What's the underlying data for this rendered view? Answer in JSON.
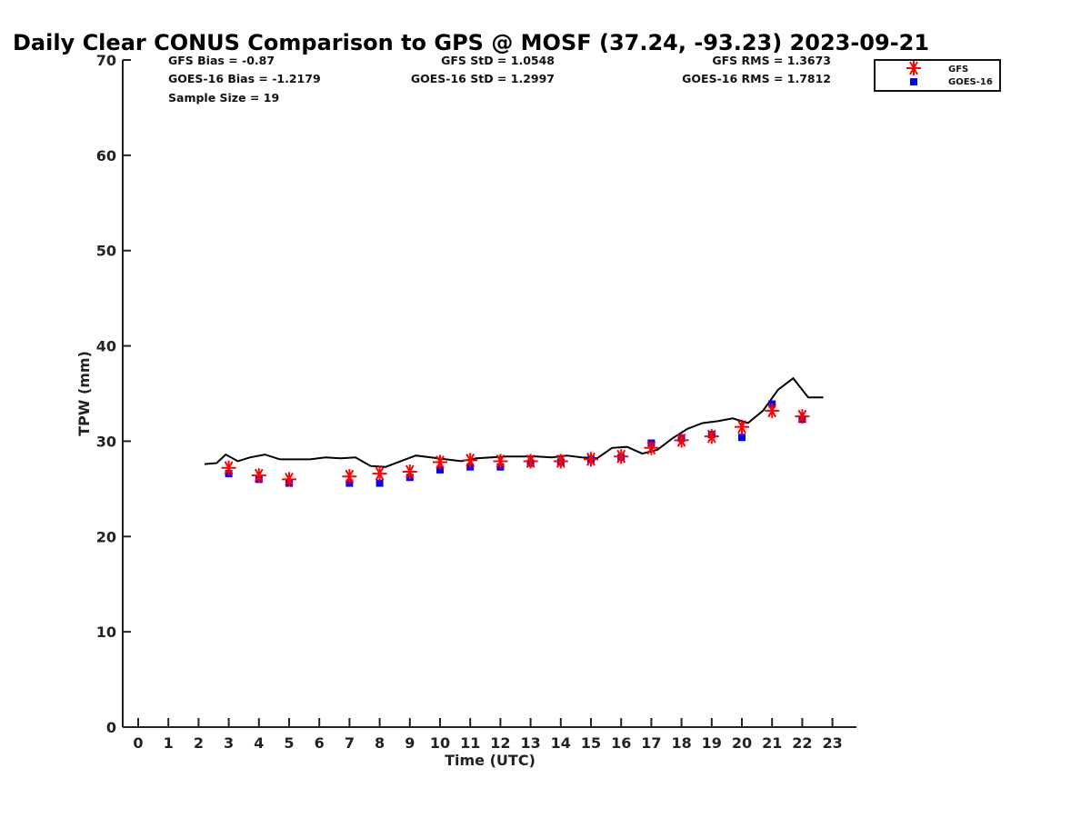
{
  "chart_data": {
    "type": "scatter",
    "title": "Daily Clear CONUS Comparison to GPS @ MOSF (37.24, -93.23) 2023-09-21",
    "xlabel": "Time (UTC)",
    "ylabel": "TPW (mm)",
    "xlim": [
      -0.5,
      23.7
    ],
    "ylim": [
      0,
      70
    ],
    "xticks": [
      "0",
      "1",
      "2",
      "3",
      "4",
      "5",
      "6",
      "7",
      "8",
      "9",
      "10",
      "11",
      "12",
      "13",
      "14",
      "15",
      "16",
      "17",
      "18",
      "19",
      "20",
      "21",
      "22",
      "23"
    ],
    "yticks": [
      "0",
      "10",
      "20",
      "30",
      "40",
      "50",
      "60",
      "70"
    ],
    "grid": false,
    "legend_position": "top-right",
    "stats": {
      "gfs_bias": "GFS Bias = -0.87",
      "goes_bias": "GOES-16 Bias = -1.2179",
      "sample_size": "Sample Size = 19",
      "gfs_std": "GFS StD = 1.0548",
      "goes_std": "GOES-16 StD = 1.2997",
      "gfs_rms": "GFS RMS = 1.3673",
      "goes_rms": "GOES-16 RMS = 1.7812"
    },
    "series": [
      {
        "marker": "line",
        "color": "#000000",
        "x": [
          2.2,
          2.6,
          2.9,
          3.3,
          3.7,
          4.2,
          4.7,
          5.2,
          5.7,
          6.2,
          6.7,
          7.2,
          7.7,
          8.2,
          8.7,
          9.2,
          9.7,
          10.2,
          10.7,
          11.2,
          11.7,
          12.2,
          12.7,
          13.2,
          13.7,
          14.2,
          14.7,
          15.2,
          15.7,
          16.2,
          16.7,
          17.2,
          17.7,
          18.2,
          18.7,
          19.2,
          19.7,
          20.2,
          20.7,
          21.2,
          21.7,
          22.2,
          22.7
        ],
        "y": [
          27.6,
          27.7,
          28.6,
          27.9,
          28.3,
          28.6,
          28.1,
          28.1,
          28.1,
          28.3,
          28.2,
          28.3,
          27.4,
          27.3,
          27.9,
          28.5,
          28.3,
          28.1,
          27.9,
          28.2,
          28.3,
          28.4,
          28.4,
          28.4,
          28.3,
          28.5,
          28.3,
          28.2,
          29.3,
          29.4,
          28.7,
          29.1,
          30.3,
          31.3,
          31.9,
          32.1,
          32.4,
          31.9,
          33.2,
          35.4,
          36.6,
          34.6,
          34.6
        ]
      },
      {
        "name": "GFS",
        "marker": "asterisk",
        "color": "#ff0000",
        "x": [
          3,
          4,
          5,
          7,
          8,
          9,
          10,
          11,
          12,
          13,
          14,
          15,
          16,
          17,
          18,
          19,
          20,
          21,
          22
        ],
        "y": [
          27.2,
          26.4,
          26.0,
          26.3,
          26.6,
          26.8,
          27.8,
          28.0,
          27.9,
          27.9,
          27.9,
          28.1,
          28.4,
          29.3,
          30.1,
          30.5,
          31.5,
          33.2,
          32.6
        ]
      },
      {
        "name": "GOES-16",
        "marker": "square",
        "color": "#0000ff",
        "x": [
          3,
          4,
          5,
          7,
          8,
          9,
          10,
          11,
          12,
          13,
          14,
          15,
          16,
          17,
          18,
          19,
          20,
          21,
          22
        ],
        "y": [
          26.6,
          26.0,
          25.6,
          25.6,
          25.6,
          26.2,
          27.0,
          27.3,
          27.3,
          27.7,
          27.8,
          28.1,
          28.3,
          29.8,
          30.3,
          30.7,
          30.4,
          33.9,
          32.3
        ]
      }
    ]
  }
}
